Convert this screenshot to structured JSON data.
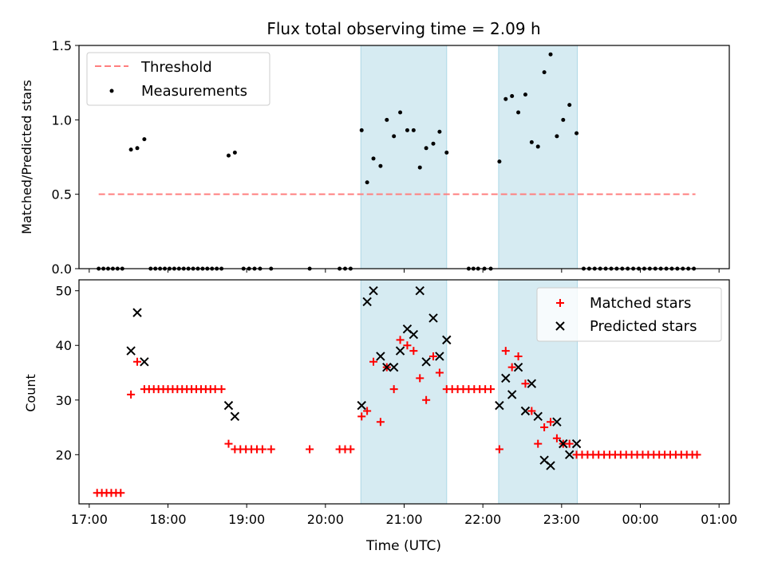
{
  "colors": {
    "matched": "#ff0000",
    "predicted": "#000000",
    "threshold": "#ff7f7f",
    "band_fill": "#add8e6"
  },
  "chart_data": [
    {
      "type": "scatter",
      "title": "Flux total observing time = 2.09 h",
      "xlabel": "",
      "ylabel": "Matched/Predicted stars",
      "xlim_hours": [
        16.87,
        25.13
      ],
      "ylim": [
        0,
        1.5
      ],
      "y_ticks": [
        0.0,
        0.5,
        1.0,
        1.5
      ],
      "y_tick_labels": [
        "0.0",
        "0.5",
        "1.0",
        "1.5"
      ],
      "shaded_intervals_hours": [
        [
          20.45,
          21.54
        ],
        [
          22.2,
          23.2
        ]
      ],
      "legend": {
        "position": "upper left",
        "threshold_label": "Threshold",
        "measurements_label": "Measurements"
      },
      "threshold": {
        "y": 0.5,
        "x_range_hours": [
          17.12,
          24.7
        ]
      },
      "measurements": [
        {
          "x": 17.12,
          "y": 0
        },
        {
          "x": 17.18,
          "y": 0
        },
        {
          "x": 17.24,
          "y": 0
        },
        {
          "x": 17.3,
          "y": 0
        },
        {
          "x": 17.36,
          "y": 0
        },
        {
          "x": 17.42,
          "y": 0
        },
        {
          "x": 17.53,
          "y": 0.8
        },
        {
          "x": 17.61,
          "y": 0.81
        },
        {
          "x": 17.7,
          "y": 0.87
        },
        {
          "x": 17.78,
          "y": 0
        },
        {
          "x": 17.84,
          "y": 0
        },
        {
          "x": 17.9,
          "y": 0
        },
        {
          "x": 17.96,
          "y": 0
        },
        {
          "x": 18.02,
          "y": 0
        },
        {
          "x": 18.08,
          "y": 0
        },
        {
          "x": 18.14,
          "y": 0
        },
        {
          "x": 18.2,
          "y": 0
        },
        {
          "x": 18.26,
          "y": 0
        },
        {
          "x": 18.32,
          "y": 0
        },
        {
          "x": 18.38,
          "y": 0
        },
        {
          "x": 18.44,
          "y": 0
        },
        {
          "x": 18.5,
          "y": 0
        },
        {
          "x": 18.56,
          "y": 0
        },
        {
          "x": 18.62,
          "y": 0
        },
        {
          "x": 18.68,
          "y": 0
        },
        {
          "x": 18.77,
          "y": 0.76
        },
        {
          "x": 18.85,
          "y": 0.78
        },
        {
          "x": 18.96,
          "y": 0
        },
        {
          "x": 19.03,
          "y": 0
        },
        {
          "x": 19.1,
          "y": 0
        },
        {
          "x": 19.17,
          "y": 0
        },
        {
          "x": 19.31,
          "y": 0
        },
        {
          "x": 19.8,
          "y": 0
        },
        {
          "x": 20.18,
          "y": 0
        },
        {
          "x": 20.25,
          "y": 0
        },
        {
          "x": 20.32,
          "y": 0
        },
        {
          "x": 20.46,
          "y": 0.93
        },
        {
          "x": 20.53,
          "y": 0.58
        },
        {
          "x": 20.61,
          "y": 0.74
        },
        {
          "x": 20.7,
          "y": 0.69
        },
        {
          "x": 20.78,
          "y": 1.0
        },
        {
          "x": 20.87,
          "y": 0.89
        },
        {
          "x": 20.95,
          "y": 1.05
        },
        {
          "x": 21.04,
          "y": 0.93
        },
        {
          "x": 21.12,
          "y": 0.93
        },
        {
          "x": 21.2,
          "y": 0.68
        },
        {
          "x": 21.28,
          "y": 0.81
        },
        {
          "x": 21.37,
          "y": 0.84
        },
        {
          "x": 21.45,
          "y": 0.92
        },
        {
          "x": 21.54,
          "y": 0.78
        },
        {
          "x": 21.82,
          "y": 0
        },
        {
          "x": 21.88,
          "y": 0
        },
        {
          "x": 21.94,
          "y": 0
        },
        {
          "x": 22.02,
          "y": 0
        },
        {
          "x": 22.1,
          "y": 0
        },
        {
          "x": 22.21,
          "y": 0.72
        },
        {
          "x": 22.29,
          "y": 1.14
        },
        {
          "x": 22.37,
          "y": 1.16
        },
        {
          "x": 22.45,
          "y": 1.05
        },
        {
          "x": 22.54,
          "y": 1.17
        },
        {
          "x": 22.62,
          "y": 0.85
        },
        {
          "x": 22.7,
          "y": 0.82
        },
        {
          "x": 22.78,
          "y": 1.32
        },
        {
          "x": 22.86,
          "y": 1.44
        },
        {
          "x": 22.94,
          "y": 0.89
        },
        {
          "x": 23.02,
          "y": 1.0
        },
        {
          "x": 23.1,
          "y": 1.1
        },
        {
          "x": 23.19,
          "y": 0.91
        },
        {
          "x": 23.28,
          "y": 0
        },
        {
          "x": 23.35,
          "y": 0
        },
        {
          "x": 23.42,
          "y": 0
        },
        {
          "x": 23.49,
          "y": 0
        },
        {
          "x": 23.56,
          "y": 0
        },
        {
          "x": 23.63,
          "y": 0
        },
        {
          "x": 23.7,
          "y": 0
        },
        {
          "x": 23.77,
          "y": 0
        },
        {
          "x": 23.84,
          "y": 0
        },
        {
          "x": 23.91,
          "y": 0
        },
        {
          "x": 23.98,
          "y": 0
        },
        {
          "x": 24.05,
          "y": 0
        },
        {
          "x": 24.12,
          "y": 0
        },
        {
          "x": 24.19,
          "y": 0
        },
        {
          "x": 24.26,
          "y": 0
        },
        {
          "x": 24.33,
          "y": 0
        },
        {
          "x": 24.4,
          "y": 0
        },
        {
          "x": 24.47,
          "y": 0
        },
        {
          "x": 24.54,
          "y": 0
        },
        {
          "x": 24.61,
          "y": 0
        },
        {
          "x": 24.68,
          "y": 0
        }
      ]
    },
    {
      "type": "scatter",
      "title": "",
      "xlabel": "Time (UTC)",
      "ylabel": "Count",
      "xlim_hours": [
        16.87,
        25.13
      ],
      "ylim": [
        11,
        52
      ],
      "y_ticks": [
        20,
        30,
        40,
        50
      ],
      "y_tick_labels": [
        "20",
        "30",
        "40",
        "50"
      ],
      "x_ticks_hours": [
        17,
        18,
        19,
        20,
        21,
        22,
        23,
        24,
        25
      ],
      "x_tick_labels": [
        "17:00",
        "18:00",
        "19:00",
        "20:00",
        "21:00",
        "22:00",
        "23:00",
        "00:00",
        "01:00"
      ],
      "shaded_intervals_hours": [
        [
          20.45,
          21.54
        ],
        [
          22.2,
          23.2
        ]
      ],
      "legend": {
        "position": "upper right",
        "matched_label": "Matched stars",
        "predicted_label": "Predicted stars"
      },
      "matched": [
        {
          "x": 17.1,
          "y": 13
        },
        {
          "x": 17.16,
          "y": 13
        },
        {
          "x": 17.22,
          "y": 13
        },
        {
          "x": 17.28,
          "y": 13
        },
        {
          "x": 17.34,
          "y": 13
        },
        {
          "x": 17.4,
          "y": 13
        },
        {
          "x": 17.53,
          "y": 31
        },
        {
          "x": 17.61,
          "y": 37
        },
        {
          "x": 17.7,
          "y": 32
        },
        {
          "x": 17.76,
          "y": 32
        },
        {
          "x": 17.82,
          "y": 32
        },
        {
          "x": 17.88,
          "y": 32
        },
        {
          "x": 17.94,
          "y": 32
        },
        {
          "x": 18.0,
          "y": 32
        },
        {
          "x": 18.06,
          "y": 32
        },
        {
          "x": 18.12,
          "y": 32
        },
        {
          "x": 18.18,
          "y": 32
        },
        {
          "x": 18.24,
          "y": 32
        },
        {
          "x": 18.3,
          "y": 32
        },
        {
          "x": 18.36,
          "y": 32
        },
        {
          "x": 18.42,
          "y": 32
        },
        {
          "x": 18.48,
          "y": 32
        },
        {
          "x": 18.54,
          "y": 32
        },
        {
          "x": 18.6,
          "y": 32
        },
        {
          "x": 18.68,
          "y": 32
        },
        {
          "x": 18.77,
          "y": 22
        },
        {
          "x": 18.85,
          "y": 21
        },
        {
          "x": 18.92,
          "y": 21
        },
        {
          "x": 18.99,
          "y": 21
        },
        {
          "x": 19.06,
          "y": 21
        },
        {
          "x": 19.13,
          "y": 21
        },
        {
          "x": 19.2,
          "y": 21
        },
        {
          "x": 19.31,
          "y": 21
        },
        {
          "x": 19.8,
          "y": 21
        },
        {
          "x": 20.18,
          "y": 21
        },
        {
          "x": 20.25,
          "y": 21
        },
        {
          "x": 20.32,
          "y": 21
        },
        {
          "x": 20.46,
          "y": 27
        },
        {
          "x": 20.53,
          "y": 28
        },
        {
          "x": 20.61,
          "y": 37
        },
        {
          "x": 20.7,
          "y": 26
        },
        {
          "x": 20.78,
          "y": 36
        },
        {
          "x": 20.87,
          "y": 32
        },
        {
          "x": 20.95,
          "y": 41
        },
        {
          "x": 21.04,
          "y": 40
        },
        {
          "x": 21.12,
          "y": 39
        },
        {
          "x": 21.2,
          "y": 34
        },
        {
          "x": 21.28,
          "y": 30
        },
        {
          "x": 21.37,
          "y": 38
        },
        {
          "x": 21.45,
          "y": 35
        },
        {
          "x": 21.54,
          "y": 32
        },
        {
          "x": 21.61,
          "y": 32
        },
        {
          "x": 21.68,
          "y": 32
        },
        {
          "x": 21.75,
          "y": 32
        },
        {
          "x": 21.82,
          "y": 32
        },
        {
          "x": 21.89,
          "y": 32
        },
        {
          "x": 21.96,
          "y": 32
        },
        {
          "x": 22.03,
          "y": 32
        },
        {
          "x": 22.1,
          "y": 32
        },
        {
          "x": 22.21,
          "y": 21
        },
        {
          "x": 22.29,
          "y": 39
        },
        {
          "x": 22.37,
          "y": 36
        },
        {
          "x": 22.45,
          "y": 38
        },
        {
          "x": 22.54,
          "y": 33
        },
        {
          "x": 22.62,
          "y": 28
        },
        {
          "x": 22.7,
          "y": 22
        },
        {
          "x": 22.78,
          "y": 25
        },
        {
          "x": 22.86,
          "y": 26
        },
        {
          "x": 22.94,
          "y": 23
        },
        {
          "x": 23.02,
          "y": 22
        },
        {
          "x": 23.1,
          "y": 22
        },
        {
          "x": 23.19,
          "y": 20
        },
        {
          "x": 23.26,
          "y": 20
        },
        {
          "x": 23.33,
          "y": 20
        },
        {
          "x": 23.4,
          "y": 20
        },
        {
          "x": 23.47,
          "y": 20
        },
        {
          "x": 23.54,
          "y": 20
        },
        {
          "x": 23.61,
          "y": 20
        },
        {
          "x": 23.68,
          "y": 20
        },
        {
          "x": 23.75,
          "y": 20
        },
        {
          "x": 23.82,
          "y": 20
        },
        {
          "x": 23.89,
          "y": 20
        },
        {
          "x": 23.96,
          "y": 20
        },
        {
          "x": 24.03,
          "y": 20
        },
        {
          "x": 24.1,
          "y": 20
        },
        {
          "x": 24.17,
          "y": 20
        },
        {
          "x": 24.24,
          "y": 20
        },
        {
          "x": 24.31,
          "y": 20
        },
        {
          "x": 24.38,
          "y": 20
        },
        {
          "x": 24.45,
          "y": 20
        },
        {
          "x": 24.52,
          "y": 20
        },
        {
          "x": 24.59,
          "y": 20
        },
        {
          "x": 24.66,
          "y": 20
        },
        {
          "x": 24.72,
          "y": 20
        }
      ],
      "predicted": [
        {
          "x": 17.53,
          "y": 39
        },
        {
          "x": 17.61,
          "y": 46
        },
        {
          "x": 17.7,
          "y": 37
        },
        {
          "x": 18.77,
          "y": 29
        },
        {
          "x": 18.85,
          "y": 27
        },
        {
          "x": 20.46,
          "y": 29
        },
        {
          "x": 20.53,
          "y": 48
        },
        {
          "x": 20.61,
          "y": 50
        },
        {
          "x": 20.7,
          "y": 38
        },
        {
          "x": 20.78,
          "y": 36
        },
        {
          "x": 20.87,
          "y": 36
        },
        {
          "x": 20.95,
          "y": 39
        },
        {
          "x": 21.04,
          "y": 43
        },
        {
          "x": 21.12,
          "y": 42
        },
        {
          "x": 21.2,
          "y": 50
        },
        {
          "x": 21.28,
          "y": 37
        },
        {
          "x": 21.37,
          "y": 45
        },
        {
          "x": 21.45,
          "y": 38
        },
        {
          "x": 21.54,
          "y": 41
        },
        {
          "x": 22.21,
          "y": 29
        },
        {
          "x": 22.29,
          "y": 34
        },
        {
          "x": 22.37,
          "y": 31
        },
        {
          "x": 22.45,
          "y": 36
        },
        {
          "x": 22.54,
          "y": 28
        },
        {
          "x": 22.62,
          "y": 33
        },
        {
          "x": 22.7,
          "y": 27
        },
        {
          "x": 22.78,
          "y": 19
        },
        {
          "x": 22.86,
          "y": 18
        },
        {
          "x": 22.94,
          "y": 26
        },
        {
          "x": 23.02,
          "y": 22
        },
        {
          "x": 23.1,
          "y": 20
        },
        {
          "x": 23.19,
          "y": 22
        }
      ]
    }
  ]
}
